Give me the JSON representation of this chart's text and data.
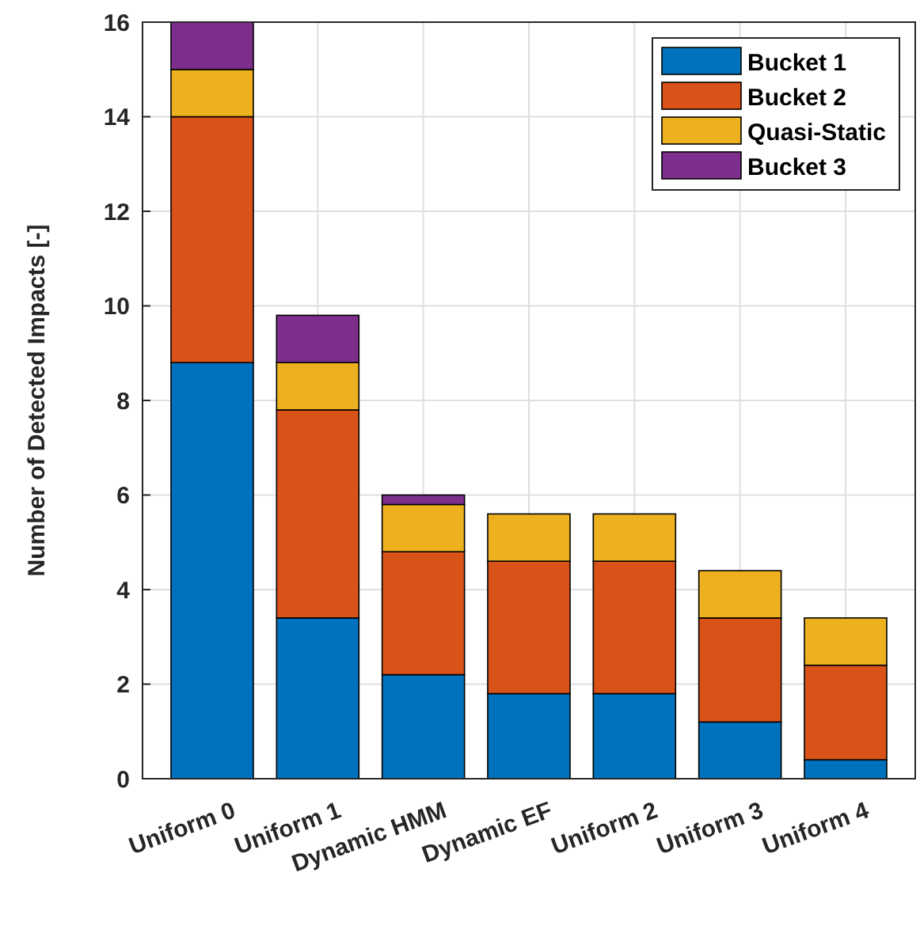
{
  "chart_data": {
    "type": "bar",
    "stacked": true,
    "ylabel": "Number of Detected Impacts [-]",
    "categories": [
      "Uniform 0",
      "Uniform 1",
      "Dynamic HMM",
      "Dynamic EF",
      "Uniform 2",
      "Uniform 3",
      "Uniform 4"
    ],
    "series": [
      {
        "name": "Bucket 1",
        "color": "#0072bd",
        "values": [
          8.8,
          3.4,
          2.2,
          1.8,
          1.8,
          1.2,
          0.4
        ]
      },
      {
        "name": "Bucket 2",
        "color": "#d95319",
        "values": [
          5.2,
          4.4,
          2.6,
          2.8,
          2.8,
          2.2,
          2.0
        ]
      },
      {
        "name": "Quasi-Static",
        "color": "#edb120",
        "values": [
          1,
          1,
          1,
          1,
          1,
          1,
          1
        ]
      },
      {
        "name": "Bucket 3",
        "color": "#7e2f8e",
        "values": [
          1,
          1,
          0.2,
          null,
          null,
          null,
          null
        ]
      }
    ],
    "ylim": [
      0,
      16
    ],
    "yticks": [
      0,
      2,
      4,
      6,
      8,
      10,
      12,
      14,
      16
    ],
    "grid": true,
    "legend": "top right"
  }
}
